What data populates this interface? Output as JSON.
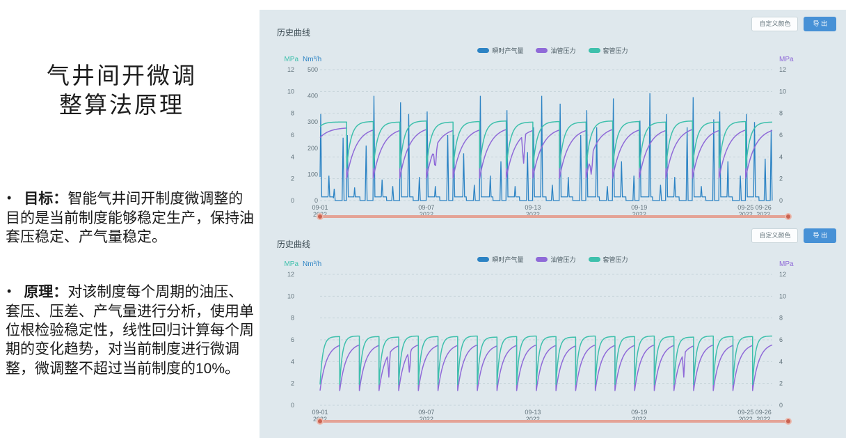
{
  "slide": {
    "title_line1": "气井间开微调",
    "title_line2": "整算法原理",
    "bullet_marker": "•",
    "bullets": [
      {
        "label": "目标：",
        "text": "智能气井间开制度微调整的目的是当前制度能够稳定生产，保持油套压稳定、产气量稳定。"
      },
      {
        "label": "原理：",
        "text": "对该制度每个周期的油压、套压、压差、产气量进行分析，使用单位根检验稳定性，线性回归计算每个周期的变化趋势，对当前制度进行微调整，微调整不超过当前制度的10%。"
      }
    ]
  },
  "panel": {
    "sections": [
      {
        "title": "历史曲线",
        "custom_color_button": "自定义颜色",
        "export_button": "导 出",
        "legend": [
          {
            "label": "瞬时产气量",
            "color": "#2c83c4"
          },
          {
            "label": "油管压力",
            "color": "#8f6ad8"
          },
          {
            "label": "套管压力",
            "color": "#3ec0ac"
          }
        ]
      },
      {
        "title": "历史曲线",
        "custom_color_button": "自定义颜色",
        "export_button": "导 出",
        "legend": [
          {
            "label": "瞬时产气量",
            "color": "#2c83c4"
          },
          {
            "label": "油管压力",
            "color": "#8f6ad8"
          },
          {
            "label": "套管压力",
            "color": "#3ec0ac"
          }
        ]
      }
    ]
  },
  "chart_data": [
    {
      "type": "line",
      "title": "历史曲线",
      "x_axis": {
        "span_days": 25.5,
        "ticks": [
          {
            "day": 0,
            "l1": "09-01",
            "l2": "2022"
          },
          {
            "day": 6,
            "l1": "09-07",
            "l2": "2022"
          },
          {
            "day": 12,
            "l1": "09-13",
            "l2": "2022"
          },
          {
            "day": 18,
            "l1": "09-19",
            "l2": "2022"
          },
          {
            "day": 24,
            "l1": "09-25",
            "l2": "2022"
          },
          {
            "day": 25,
            "l1": "09-26",
            "l2": "2022"
          }
        ]
      },
      "axes": {
        "left_mpa": {
          "label": "MPa",
          "color": "#3ec0ac",
          "max": 12,
          "ticks": [
            12,
            10,
            8,
            6,
            4,
            2,
            0
          ]
        },
        "left_gas": {
          "label": "Nm³/h",
          "color": "#2c83c4",
          "max": 500,
          "ticks": [
            500,
            400,
            300,
            200,
            100,
            0
          ]
        },
        "right_mpa": {
          "label": "MPa",
          "color": "#8f6ad8",
          "max": 12,
          "ticks": [
            12,
            10,
            8,
            6,
            4,
            2,
            0
          ]
        }
      },
      "pressure_cycles": {
        "count": 17,
        "casing": {
          "name": "套管压力",
          "color": "#3ec0ac",
          "trough": 3.0,
          "k": 6,
          "start_frac": 0.9,
          "peaks": [
            7.2,
            7.25,
            7.2,
            7.3,
            7.2,
            7.25,
            7.3,
            7.2,
            7.25,
            7.2,
            7.3,
            7.25,
            7.2,
            7.3,
            7.2,
            7.25,
            7.2
          ]
        },
        "tubing": {
          "name": "油管压力",
          "color": "#8f6ad8",
          "trough": 2.05,
          "k": 2.8,
          "start_frac": 0.8,
          "peaks": [
            6.7,
            6.75,
            6.7,
            6.8,
            6.7,
            6.75,
            6.8,
            6.7,
            6.75,
            6.7,
            6.8,
            6.75,
            6.7,
            6.8,
            6.7,
            6.75,
            6.7
          ],
          "dips": [
            [
              4,
              0.33
            ],
            [
              7,
              0.65
            ],
            [
              10,
              0.2
            ]
          ]
        }
      },
      "gas": {
        "name": "瞬时产气量",
        "color": "#2c83c4",
        "unit": "Nm³/h",
        "base_level": 14,
        "spikes": [
          [
            0.04,
            330
          ],
          [
            0.5,
            95
          ],
          [
            0.8,
            45
          ],
          [
            1.3,
            240
          ],
          [
            1.54,
            250
          ],
          [
            1.95,
            50
          ],
          [
            2.6,
            210
          ],
          [
            3.04,
            400
          ],
          [
            3.5,
            80
          ],
          [
            4.1,
            55
          ],
          [
            4.54,
            375
          ],
          [
            5.0,
            330
          ],
          [
            5.6,
            90
          ],
          [
            6.04,
            340
          ],
          [
            6.5,
            55
          ],
          [
            7.2,
            250
          ],
          [
            7.54,
            250
          ],
          [
            8.1,
            180
          ],
          [
            8.7,
            60
          ],
          [
            9.04,
            400
          ],
          [
            9.6,
            95
          ],
          [
            10.2,
            150
          ],
          [
            10.54,
            345
          ],
          [
            11.0,
            55
          ],
          [
            11.7,
            185
          ],
          [
            12.04,
            280
          ],
          [
            12.5,
            400
          ],
          [
            13.1,
            60
          ],
          [
            13.54,
            370
          ],
          [
            14.0,
            90
          ],
          [
            14.7,
            250
          ],
          [
            15.04,
            345
          ],
          [
            15.6,
            280
          ],
          [
            16.2,
            55
          ],
          [
            16.54,
            390
          ],
          [
            17.0,
            150
          ],
          [
            17.7,
            95
          ],
          [
            18.04,
            305
          ],
          [
            18.6,
            410
          ],
          [
            19.2,
            60
          ],
          [
            19.54,
            330
          ],
          [
            20.0,
            90
          ],
          [
            20.7,
            280
          ],
          [
            21.04,
            395
          ],
          [
            21.5,
            55
          ],
          [
            22.2,
            310
          ],
          [
            22.54,
            340
          ],
          [
            23.0,
            150
          ],
          [
            23.7,
            95
          ],
          [
            24.04,
            330
          ],
          [
            24.5,
            300
          ],
          [
            25.1,
            160
          ],
          [
            25.44,
            270
          ]
        ]
      },
      "slider": {
        "track_color": "#e4a396",
        "handle_color": "#cb6351"
      }
    },
    {
      "type": "line",
      "title": "历史曲线",
      "x_axis": {
        "span_days": 25.5,
        "ticks": [
          {
            "day": 0,
            "l1": "09-01",
            "l2": "2022"
          },
          {
            "day": 6,
            "l1": "09-07",
            "l2": "2022"
          },
          {
            "day": 12,
            "l1": "09-13",
            "l2": "2022"
          },
          {
            "day": 18,
            "l1": "09-19",
            "l2": "2022"
          },
          {
            "day": 24,
            "l1": "09-25",
            "l2": "2022"
          },
          {
            "day": 25,
            "l1": "09-26",
            "l2": "2022"
          }
        ]
      },
      "axes": {
        "left_mpa": {
          "label": "MPa",
          "color": "#3ec0ac",
          "max": 12,
          "ticks": [
            12,
            10,
            8,
            6,
            4,
            2,
            0
          ]
        },
        "left_gas": {
          "label": "Nm³/h",
          "color": "#2c83c4",
          "max": 500,
          "ticks": []
        },
        "right_mpa": {
          "label": "MPa",
          "color": "#8f6ad8",
          "max": 12,
          "ticks": [
            12,
            10,
            8,
            6,
            4,
            2,
            0
          ]
        }
      },
      "pressure_cycles": {
        "count": 23,
        "casing": {
          "name": "套管压力",
          "color": "#3ec0ac",
          "trough": 1.9,
          "k": 7,
          "start_frac": 0,
          "peaks": [
            6.3,
            6.35,
            6.3,
            6.25,
            6.35,
            6.3,
            6.3,
            6.35,
            6.25,
            6.3,
            6.35,
            6.3,
            6.25,
            6.35,
            6.3,
            6.3,
            6.35,
            6.3,
            6.25,
            6.35,
            6.3,
            6.3,
            6.35
          ]
        },
        "tubing": {
          "name": "油管压力",
          "color": "#8f6ad8",
          "trough": 1.35,
          "k": 3,
          "start_frac": 0,
          "peaks": [
            5.7,
            5.75,
            5.7,
            5.65,
            5.75,
            5.7,
            5.7,
            5.75,
            5.65,
            5.7,
            5.75,
            5.7,
            5.65,
            5.75,
            5.7,
            5.7,
            5.75,
            5.7,
            5.65,
            5.75,
            5.7,
            5.7,
            5.75
          ],
          "dips": [
            [
              3,
              0.5
            ],
            [
              4,
              0.55
            ],
            [
              18,
              0.5
            ]
          ]
        }
      },
      "gas": {
        "name": "瞬时产气量",
        "color": "#2c83c4",
        "unit": "Nm³/h",
        "base_level": 0,
        "spikes": []
      },
      "slider": {
        "track_color": "#e4a396",
        "handle_color": "#cb6351"
      }
    }
  ]
}
